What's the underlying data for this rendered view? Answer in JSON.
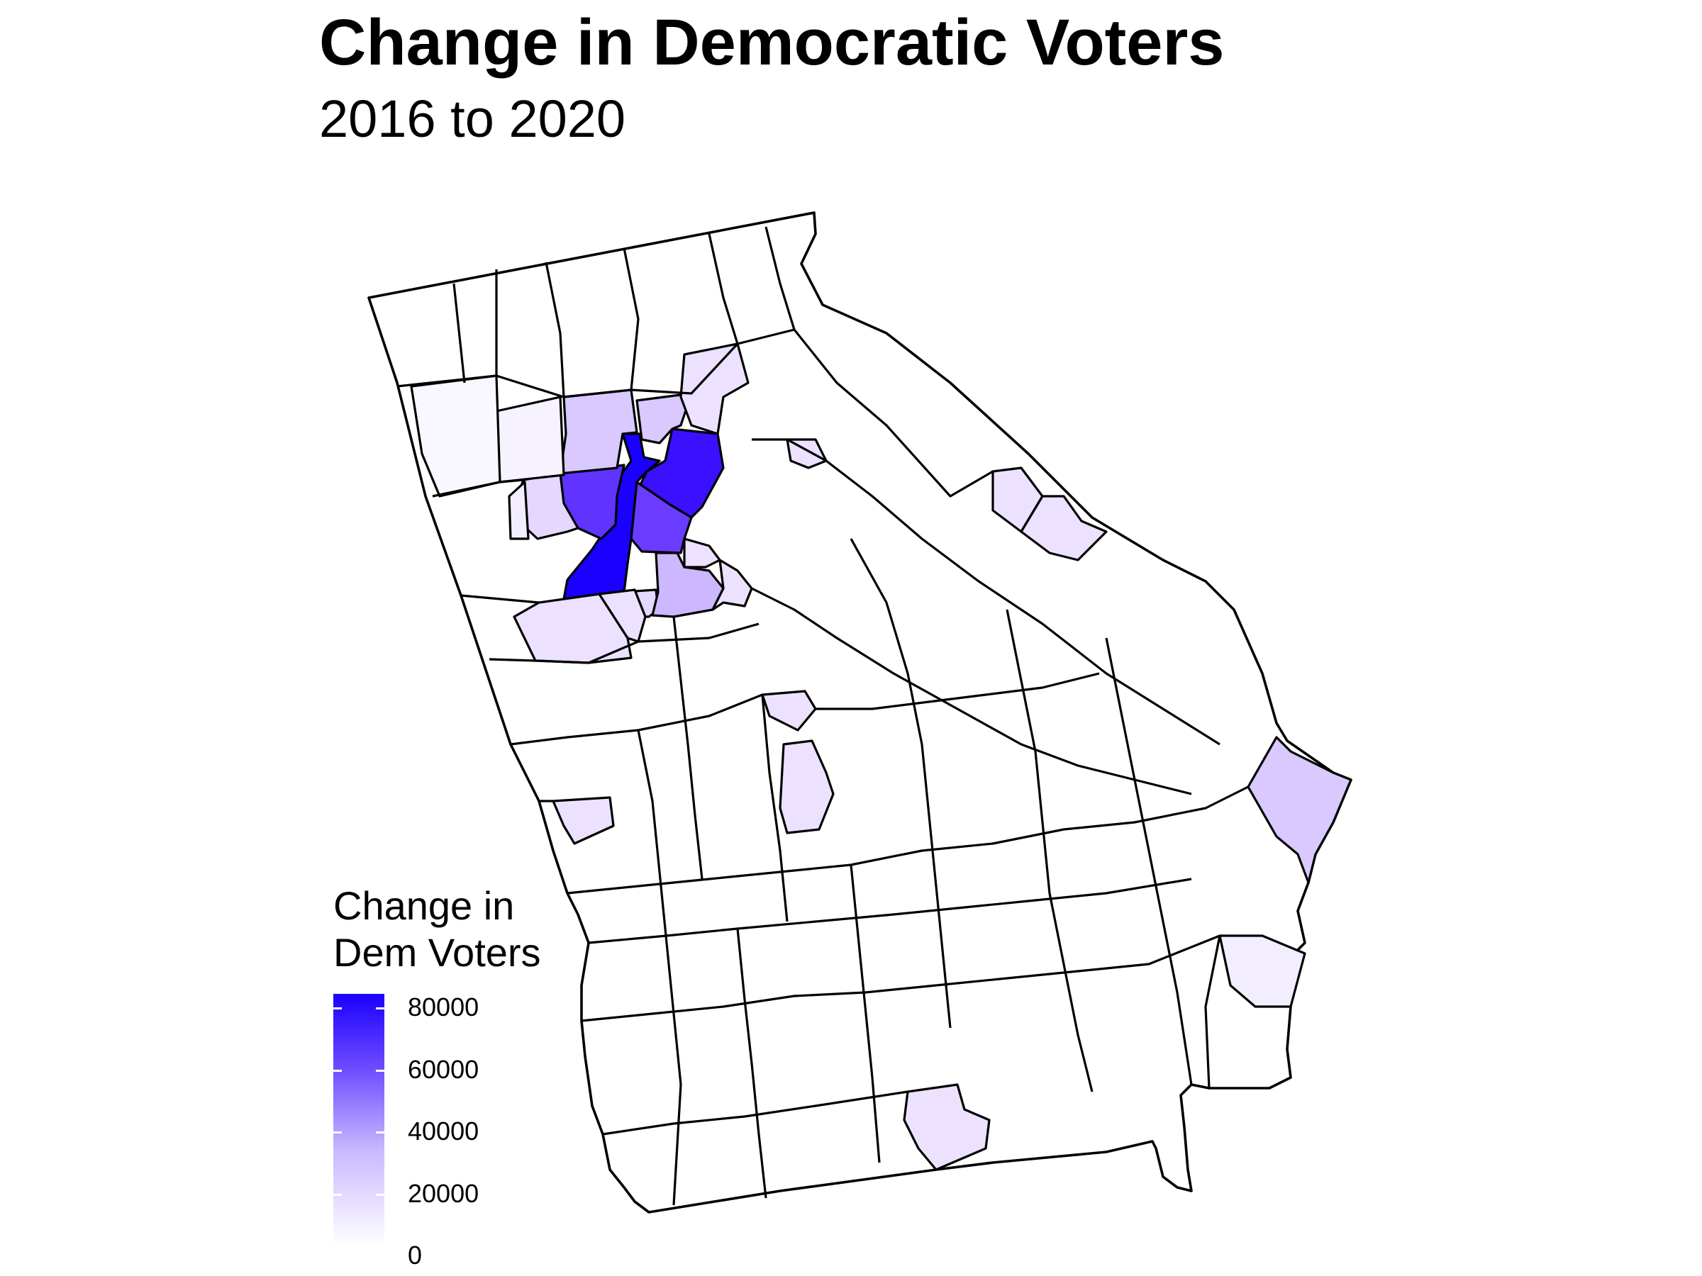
{
  "title": "Change in Democratic Voters",
  "subtitle": "2016 to 2020",
  "legend": {
    "title_line1": "Change in",
    "title_line2": "Dem Voters",
    "ticks": [
      "80000",
      "60000",
      "40000",
      "20000",
      "0"
    ],
    "color_low": "#ffffff",
    "color_high": "#1a00ff"
  },
  "chart_data": {
    "type": "heatmap",
    "map": "Georgia counties choropleth",
    "title": "Change in Democratic Voters",
    "subtitle": "2016 to 2020",
    "legend_title": "Change in Dem Voters",
    "scale_range": [
      0,
      85000
    ],
    "legend_placement": "bottom-left",
    "grid": false
  }
}
